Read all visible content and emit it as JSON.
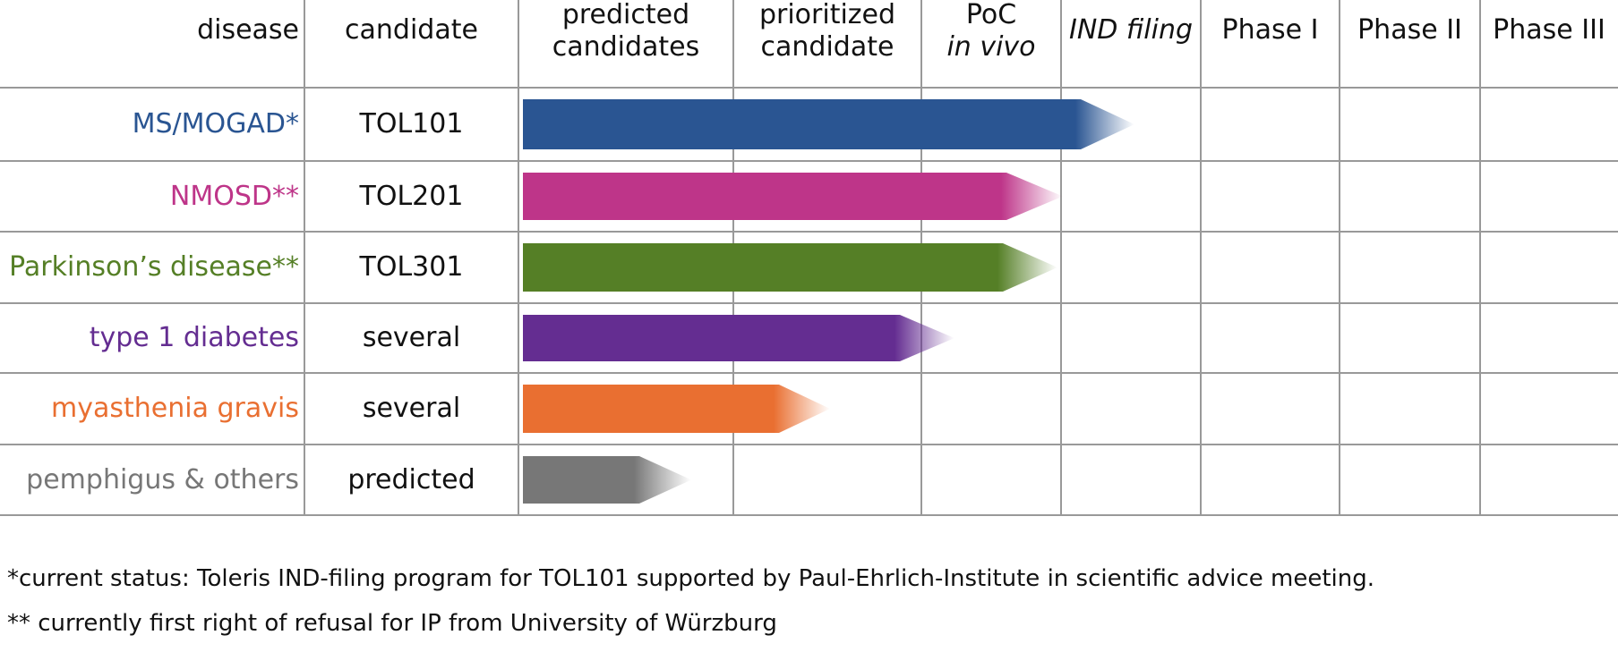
{
  "header": [
    [
      "disease"
    ],
    [
      "candidate"
    ],
    [
      "predicted",
      "candidates"
    ],
    [
      "prioritized",
      "candidate"
    ],
    [
      "PoC",
      "in vivo"
    ],
    [
      "IND filing"
    ],
    [
      "Phase I"
    ],
    [
      "Phase II"
    ],
    [
      "Phase III"
    ]
  ],
  "rows": [
    {
      "disease": "MS/MOGAD*",
      "candidate": "TOL101"
    },
    {
      "disease": "NMOSD**",
      "candidate": "TOL201"
    },
    {
      "disease": "Parkinson’s disease**",
      "candidate": "TOL301"
    },
    {
      "disease": "type 1 diabetes",
      "candidate": "several"
    },
    {
      "disease": "myasthenia gravis",
      "candidate": "several"
    },
    {
      "disease": "pemphigus & others",
      "candidate": "predicted"
    }
  ],
  "footnotes": [
    "*current status: Toleris IND-filing program for TOL101 supported by Paul-Ehrlich-Institute in scientific advice meeting.",
    "** currently first right of refusal for IP from University of Würzburg"
  ]
}
